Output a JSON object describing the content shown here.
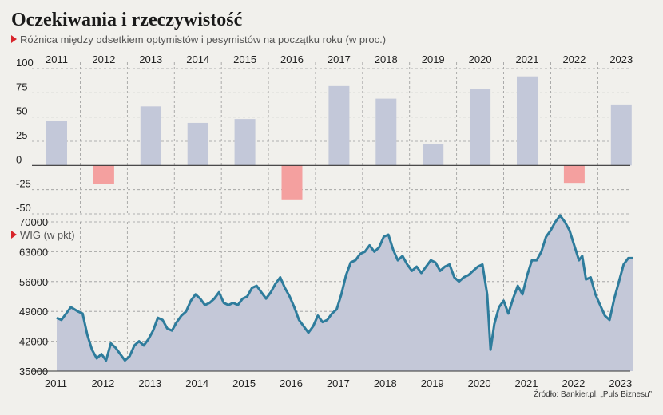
{
  "title": "Oczekiwania i rzeczywistość",
  "subtitle_top": "Różnica między odsetkiem optymistów i pesymistów na początku roku (w proc.)",
  "subtitle_bottom": "WIG (w pkt)",
  "source": "Źródło: Bankier.pl, „Puls Biznesu”",
  "colors": {
    "background": "#f1f0ec",
    "bar_positive": "#c3c8d9",
    "bar_negative": "#f4a09f",
    "wig_fill": "#c4c8d8",
    "wig_line": "#2e7c9c",
    "accent": "#d8252b"
  },
  "chart_data": [
    {
      "type": "bar",
      "categories": [
        "2011",
        "2012",
        "2013",
        "2014",
        "2015",
        "2016",
        "2017",
        "2018",
        "2019",
        "2020",
        "2021",
        "2022",
        "2023"
      ],
      "values": [
        46,
        -19,
        61,
        44,
        48,
        -35,
        82,
        69,
        22,
        79,
        92,
        -18,
        63
      ],
      "ylim": [
        -50,
        100
      ],
      "yticks": [
        100,
        75,
        50,
        25,
        0,
        -25,
        -50
      ],
      "grid": true
    },
    {
      "type": "area",
      "series": [
        {
          "x": [
            2011.0,
            2011.1,
            2011.2,
            2011.3,
            2011.45,
            2011.55,
            2011.65,
            2011.75,
            2011.85,
            2011.95,
            2012.05,
            2012.15,
            2012.25,
            2012.35,
            2012.45,
            2012.55,
            2012.65,
            2012.75,
            2012.85,
            2012.95,
            2013.05,
            2013.15,
            2013.25,
            2013.35,
            2013.45,
            2013.55,
            2013.65,
            2013.75,
            2013.85,
            2013.95,
            2014.05,
            2014.15,
            2014.25,
            2014.35,
            2014.45,
            2014.55,
            2014.65,
            2014.75,
            2014.85,
            2014.95,
            2015.05,
            2015.15,
            2015.25,
            2015.35,
            2015.45,
            2015.55,
            2015.65,
            2015.75,
            2015.85,
            2015.95,
            2016.05,
            2016.15,
            2016.25,
            2016.35,
            2016.45,
            2016.55,
            2016.65,
            2016.75,
            2016.85,
            2016.95,
            2017.05,
            2017.15,
            2017.25,
            2017.35,
            2017.45,
            2017.55,
            2017.65,
            2017.75,
            2017.85,
            2017.95,
            2018.05,
            2018.15,
            2018.25,
            2018.35,
            2018.45,
            2018.55,
            2018.65,
            2018.75,
            2018.85,
            2018.95,
            2019.05,
            2019.15,
            2019.25,
            2019.35,
            2019.45,
            2019.55,
            2019.65,
            2019.75,
            2019.85,
            2019.95,
            2020.05,
            2020.15,
            2020.22,
            2020.3,
            2020.4,
            2020.5,
            2020.6,
            2020.7,
            2020.8,
            2020.9,
            2021.0,
            2021.1,
            2021.2,
            2021.3,
            2021.4,
            2021.5,
            2021.6,
            2021.7,
            2021.8,
            2021.9,
            2022.0,
            2022.1,
            2022.17,
            2022.25,
            2022.35,
            2022.45,
            2022.55,
            2022.65,
            2022.75,
            2022.85,
            2022.95,
            2023.05,
            2023.15,
            2023.25
          ],
          "y": [
            47500,
            47000,
            48500,
            50000,
            49000,
            48500,
            43500,
            40000,
            38000,
            39000,
            37500,
            41500,
            40500,
            39000,
            37500,
            38500,
            41000,
            42000,
            41000,
            42500,
            44500,
            47500,
            47000,
            45000,
            44500,
            46500,
            48000,
            49000,
            51500,
            53000,
            52000,
            50500,
            51000,
            52000,
            53500,
            51000,
            50500,
            51000,
            50500,
            52000,
            52500,
            54500,
            55000,
            53500,
            52000,
            53500,
            55500,
            57000,
            54500,
            52500,
            50000,
            47000,
            45500,
            44000,
            45500,
            48000,
            46500,
            47000,
            48500,
            49500,
            53000,
            57500,
            60500,
            61000,
            62500,
            63000,
            64500,
            63000,
            64000,
            66500,
            67000,
            63500,
            61000,
            62000,
            60000,
            58500,
            59500,
            58000,
            59500,
            61000,
            60500,
            58500,
            59500,
            60000,
            57000,
            56000,
            57000,
            57500,
            58500,
            59500,
            60000,
            53000,
            40000,
            46000,
            50000,
            51500,
            48500,
            52000,
            55000,
            53000,
            57500,
            61000,
            61000,
            63000,
            66500,
            68000,
            70000,
            71500,
            70000,
            68000,
            64500,
            61000,
            62000,
            56500,
            57000,
            53000,
            50500,
            48000,
            47000,
            52000,
            56000,
            60000,
            61500,
            61500
          ]
        }
      ],
      "ylim": [
        35000,
        70000
      ],
      "yticks": [
        70000,
        63000,
        56000,
        49000,
        42000,
        35000
      ],
      "grid": true
    }
  ]
}
